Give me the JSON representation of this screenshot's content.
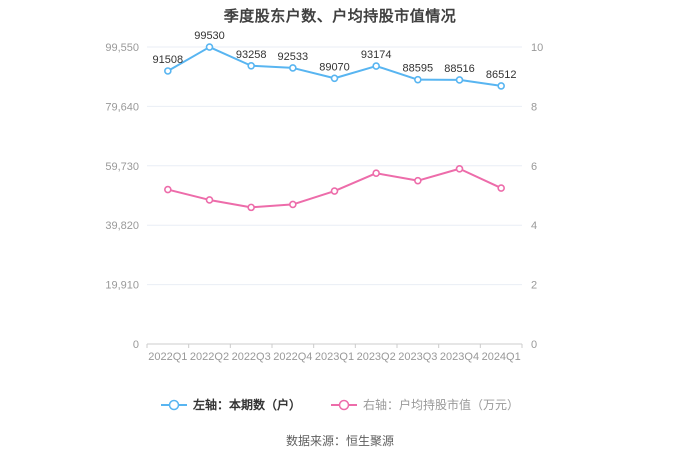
{
  "title": "季度股东户数、户均持股市值情况",
  "source": "数据来源：恒生聚源",
  "legend": {
    "items": [
      {
        "label": "左轴：本期数（户）",
        "series_color": "#58b5f1",
        "text_color": "#333333",
        "bold": true
      },
      {
        "label": "右轴：户均持股市值（万元）",
        "series_color": "#ed6caa",
        "text_color": "#999999",
        "bold": false
      }
    ]
  },
  "chart_data": {
    "type": "line",
    "title": "季度股东户数、户均持股市值情况",
    "categories": [
      "2022Q1",
      "2022Q2",
      "2022Q3",
      "2022Q4",
      "2023Q1",
      "2023Q2",
      "2023Q3",
      "2023Q4",
      "2024Q1"
    ],
    "series": [
      {
        "name": "左轴：本期数（户）",
        "axis": "left",
        "color": "#58b5f1",
        "values": [
          91508,
          99530,
          93258,
          92533,
          89070,
          93174,
          88595,
          88516,
          86512
        ],
        "labels_visible": true
      },
      {
        "name": "右轴：户均持股市值（万元）",
        "axis": "right",
        "color": "#ed6caa",
        "values": [
          5.2,
          4.85,
          4.6,
          4.7,
          5.15,
          5.75,
          5.5,
          5.9,
          5.25
        ],
        "labels_visible": false
      }
    ],
    "left_axis": {
      "ticks": [
        0,
        19910,
        39820,
        59730,
        79640,
        99550
      ],
      "tick_labels": [
        "0",
        "19,910",
        "39,820",
        "59,730",
        "79,640",
        "99,550"
      ],
      "max": 99550
    },
    "right_axis": {
      "ticks": [
        0,
        2,
        4,
        6,
        8,
        10
      ],
      "tick_labels": [
        "0",
        "2",
        "4",
        "6",
        "8",
        "10"
      ],
      "max": 10
    },
    "grid": true,
    "legend_position": "bottom",
    "colors": {
      "grid_line": "#e9eef5",
      "axis_line": "#cccccc",
      "axis_text": "#999999",
      "data_label": "#333333"
    }
  }
}
